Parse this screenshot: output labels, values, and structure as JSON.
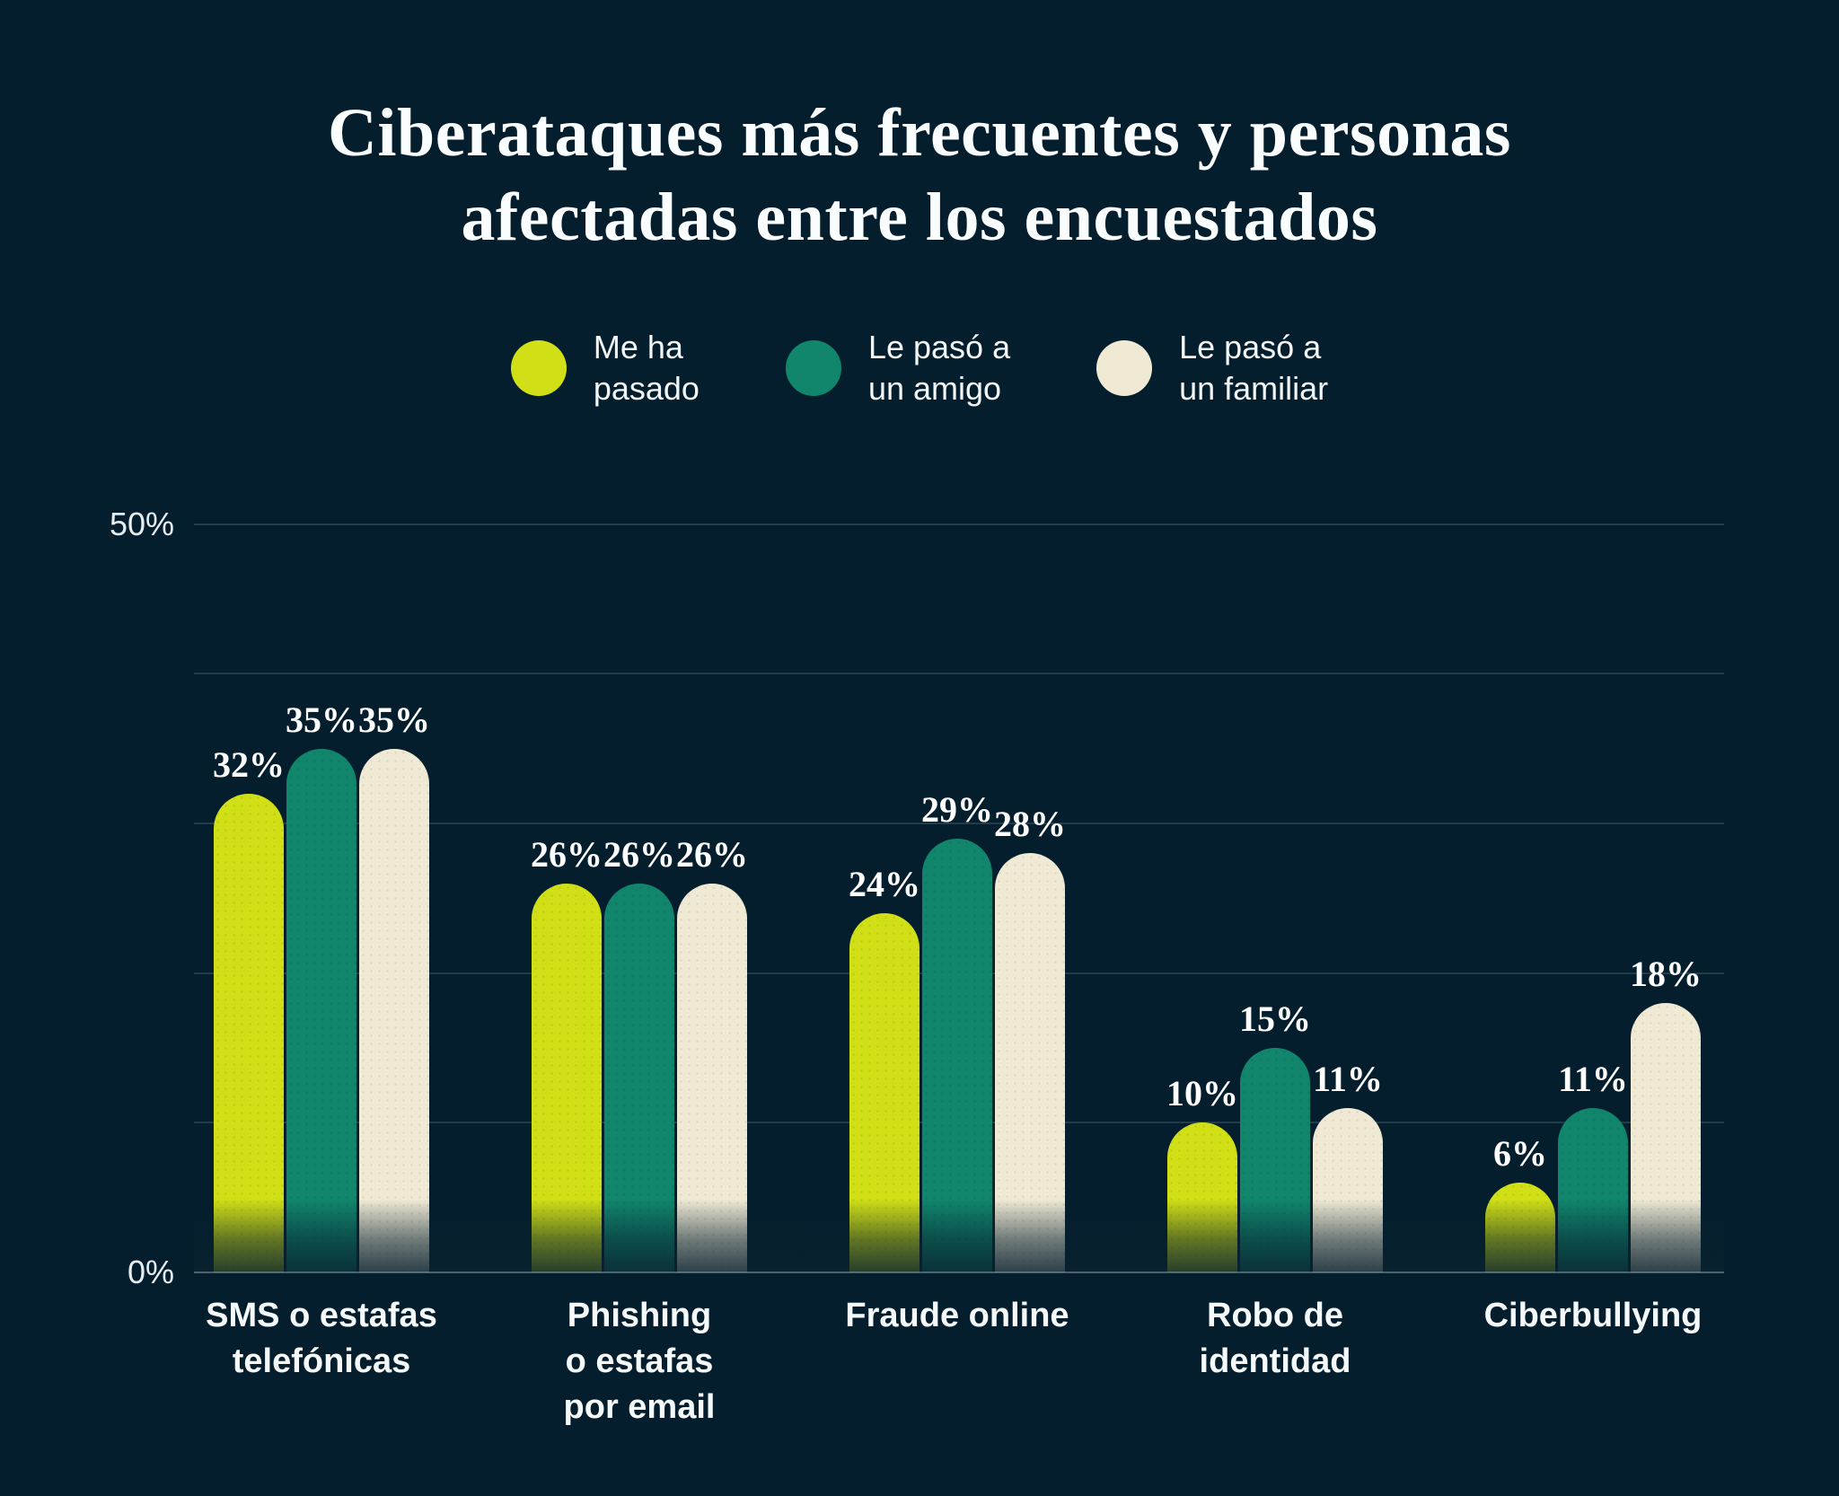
{
  "title": {
    "line1": "Ciberataques más frecuentes y personas",
    "line2": "afectadas entre los encuestados"
  },
  "axis": {
    "y_top_label": "50%",
    "y_bottom_label": "0%"
  },
  "colors": {
    "background": "#041e2d",
    "title_text": "#fafdfd",
    "gridline": "rgba(166,199,212,0.18)",
    "baseline": "rgba(176,203,214,0.40)"
  },
  "chart_data": {
    "type": "bar",
    "title": "Ciberataques más frecuentes y personas afectadas entre los encuestados",
    "categories": [
      "SMS o estafas telefónicas",
      "Phishing o estafas por email",
      "Fraude online",
      "Robo de identidad",
      "Ciberbullying"
    ],
    "category_label_lines": [
      [
        "SMS o estafas",
        "telefónicas"
      ],
      [
        "Phishing",
        "o estafas",
        "por email"
      ],
      [
        "Fraude online"
      ],
      [
        "Robo de",
        "identidad"
      ],
      [
        "Ciberbullying"
      ]
    ],
    "series": [
      {
        "name": "Me ha pasado",
        "legend_lines": [
          "Me ha",
          "pasado"
        ],
        "color": "#d1e016",
        "values": [
          32,
          26,
          24,
          10,
          6
        ]
      },
      {
        "name": "Le pasó a un amigo",
        "legend_lines": [
          "Le pasó a",
          "un amigo"
        ],
        "color": "#11866d",
        "values": [
          35,
          26,
          29,
          15,
          11
        ]
      },
      {
        "name": "Le pasó a un familiar",
        "legend_lines": [
          "Le pasó a",
          "un familiar"
        ],
        "color": "#f0ead5",
        "values": [
          35,
          26,
          28,
          11,
          18
        ]
      }
    ],
    "value_suffix": "%",
    "ylim": [
      0,
      50
    ],
    "gridline_step": 10,
    "grid": true,
    "legend_position": "top",
    "ytick_labels_shown": [
      "50%",
      "0%"
    ]
  }
}
